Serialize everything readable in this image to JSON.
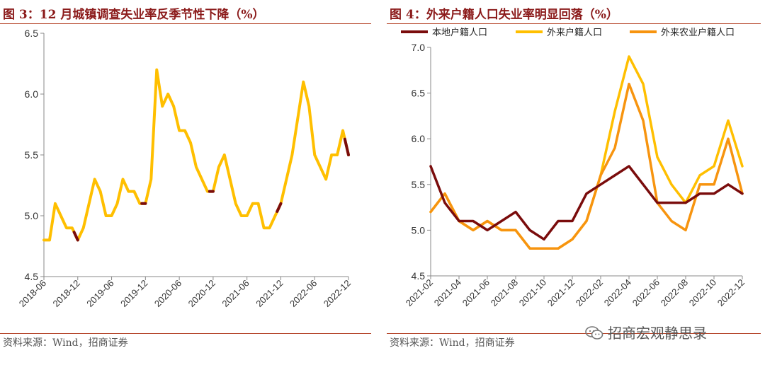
{
  "colors": {
    "title": "#8b1a1a",
    "rule": "#b5452a",
    "local": "#7a0c0c",
    "migrant": "#ffbf00",
    "migrant_agri": "#f7940f",
    "axis": "#888888"
  },
  "left": {
    "title": "图 3：12 月城镇调查失业率反季节性下降（%）",
    "source": "资料来源：Wind，招商证券"
  },
  "right": {
    "title": "图 4：外来户籍人口失业率明显回落（%）",
    "source": "资料来源：Wind，招商证券"
  },
  "watermark": {
    "text": "招商宏观静思录",
    "icon": "wechat-icon"
  },
  "chart_data": [
    {
      "type": "line",
      "title": "图 3：12 月城镇调查失业率反季节性下降（%）",
      "xlabel": "",
      "ylabel": "",
      "ylim": [
        4.5,
        6.5
      ],
      "yticks": [
        "4.5",
        "5.0",
        "5.5",
        "6.0",
        "6.5"
      ],
      "x": [
        "2018-06",
        "2018-07",
        "2018-08",
        "2018-09",
        "2018-10",
        "2018-11",
        "2018-12",
        "2019-01",
        "2019-02",
        "2019-03",
        "2019-04",
        "2019-05",
        "2019-06",
        "2019-07",
        "2019-08",
        "2019-09",
        "2019-10",
        "2019-11",
        "2019-12",
        "2020-01",
        "2020-02",
        "2020-03",
        "2020-04",
        "2020-05",
        "2020-06",
        "2020-07",
        "2020-08",
        "2020-09",
        "2020-10",
        "2020-11",
        "2020-12",
        "2021-01",
        "2021-02",
        "2021-03",
        "2021-04",
        "2021-05",
        "2021-06",
        "2021-07",
        "2021-08",
        "2021-09",
        "2021-10",
        "2021-11",
        "2021-12",
        "2022-01",
        "2022-02",
        "2022-03",
        "2022-04",
        "2022-05",
        "2022-06",
        "2022-07",
        "2022-08",
        "2022-09",
        "2022-10",
        "2022-11",
        "2022-12"
      ],
      "xticks": [
        "2018-06",
        "2018-12",
        "2019-06",
        "2019-12",
        "2020-06",
        "2020-12",
        "2021-06",
        "2021-12",
        "2022-06",
        "2022-12"
      ],
      "series": [
        {
          "name": "城镇调查失业率",
          "values": [
            4.8,
            4.8,
            5.1,
            5.0,
            4.9,
            4.9,
            4.8,
            4.9,
            5.1,
            5.3,
            5.2,
            5.0,
            5.0,
            5.1,
            5.3,
            5.2,
            5.2,
            5.1,
            5.1,
            5.3,
            6.2,
            5.9,
            6.0,
            5.9,
            5.7,
            5.7,
            5.6,
            5.4,
            5.3,
            5.2,
            5.2,
            5.4,
            5.5,
            5.3,
            5.1,
            5.0,
            5.0,
            5.1,
            5.1,
            4.9,
            4.9,
            5.0,
            5.1,
            5.3,
            5.5,
            5.8,
            6.1,
            5.9,
            5.5,
            5.4,
            5.3,
            5.5,
            5.5,
            5.7,
            5.5
          ]
        }
      ],
      "highlight_months": [
        "12"
      ]
    },
    {
      "type": "line",
      "title": "图 4：外来户籍人口失业率明显回落（%）",
      "xlabel": "",
      "ylabel": "",
      "ylim": [
        4.5,
        7.0
      ],
      "yticks": [
        "4.5",
        "5.0",
        "5.5",
        "6.0",
        "6.5",
        "7.0"
      ],
      "x": [
        "2021-02",
        "2021-03",
        "2021-04",
        "2021-05",
        "2021-06",
        "2021-07",
        "2021-08",
        "2021-09",
        "2021-10",
        "2021-11",
        "2021-12",
        "2022-01",
        "2022-02",
        "2022-03",
        "2022-04",
        "2022-05",
        "2022-06",
        "2022-07",
        "2022-08",
        "2022-09",
        "2022-10",
        "2022-11",
        "2022-12"
      ],
      "xticks": [
        "2021-02",
        "2021-04",
        "2021-06",
        "2021-08",
        "2021-10",
        "2021-12",
        "2022-02",
        "2022-04",
        "2022-06",
        "2022-08",
        "2022-10",
        "2022-12"
      ],
      "legend": [
        "本地户籍人口",
        "外来户籍人口",
        "外来农业户籍人口"
      ],
      "series": [
        {
          "name": "本地户籍人口",
          "values": [
            5.7,
            5.3,
            5.1,
            5.1,
            5.0,
            5.1,
            5.2,
            5.0,
            4.9,
            5.1,
            5.1,
            5.4,
            5.5,
            5.6,
            5.7,
            5.5,
            5.3,
            5.3,
            5.3,
            5.4,
            5.4,
            5.5,
            5.4
          ]
        },
        {
          "name": "外来户籍人口",
          "values": [
            5.2,
            5.4,
            5.1,
            5.0,
            5.1,
            5.0,
            5.0,
            4.8,
            4.8,
            4.8,
            4.9,
            5.1,
            5.6,
            6.3,
            6.9,
            6.6,
            5.8,
            5.5,
            5.3,
            5.6,
            5.7,
            6.2,
            5.7
          ]
        },
        {
          "name": "外来农业户籍人口",
          "values": [
            5.2,
            5.4,
            5.1,
            5.0,
            5.1,
            5.0,
            5.0,
            4.8,
            4.8,
            4.8,
            4.9,
            5.1,
            5.6,
            5.9,
            6.6,
            6.2,
            5.3,
            5.1,
            5.0,
            5.5,
            5.5,
            6.0,
            5.4
          ]
        }
      ]
    }
  ]
}
